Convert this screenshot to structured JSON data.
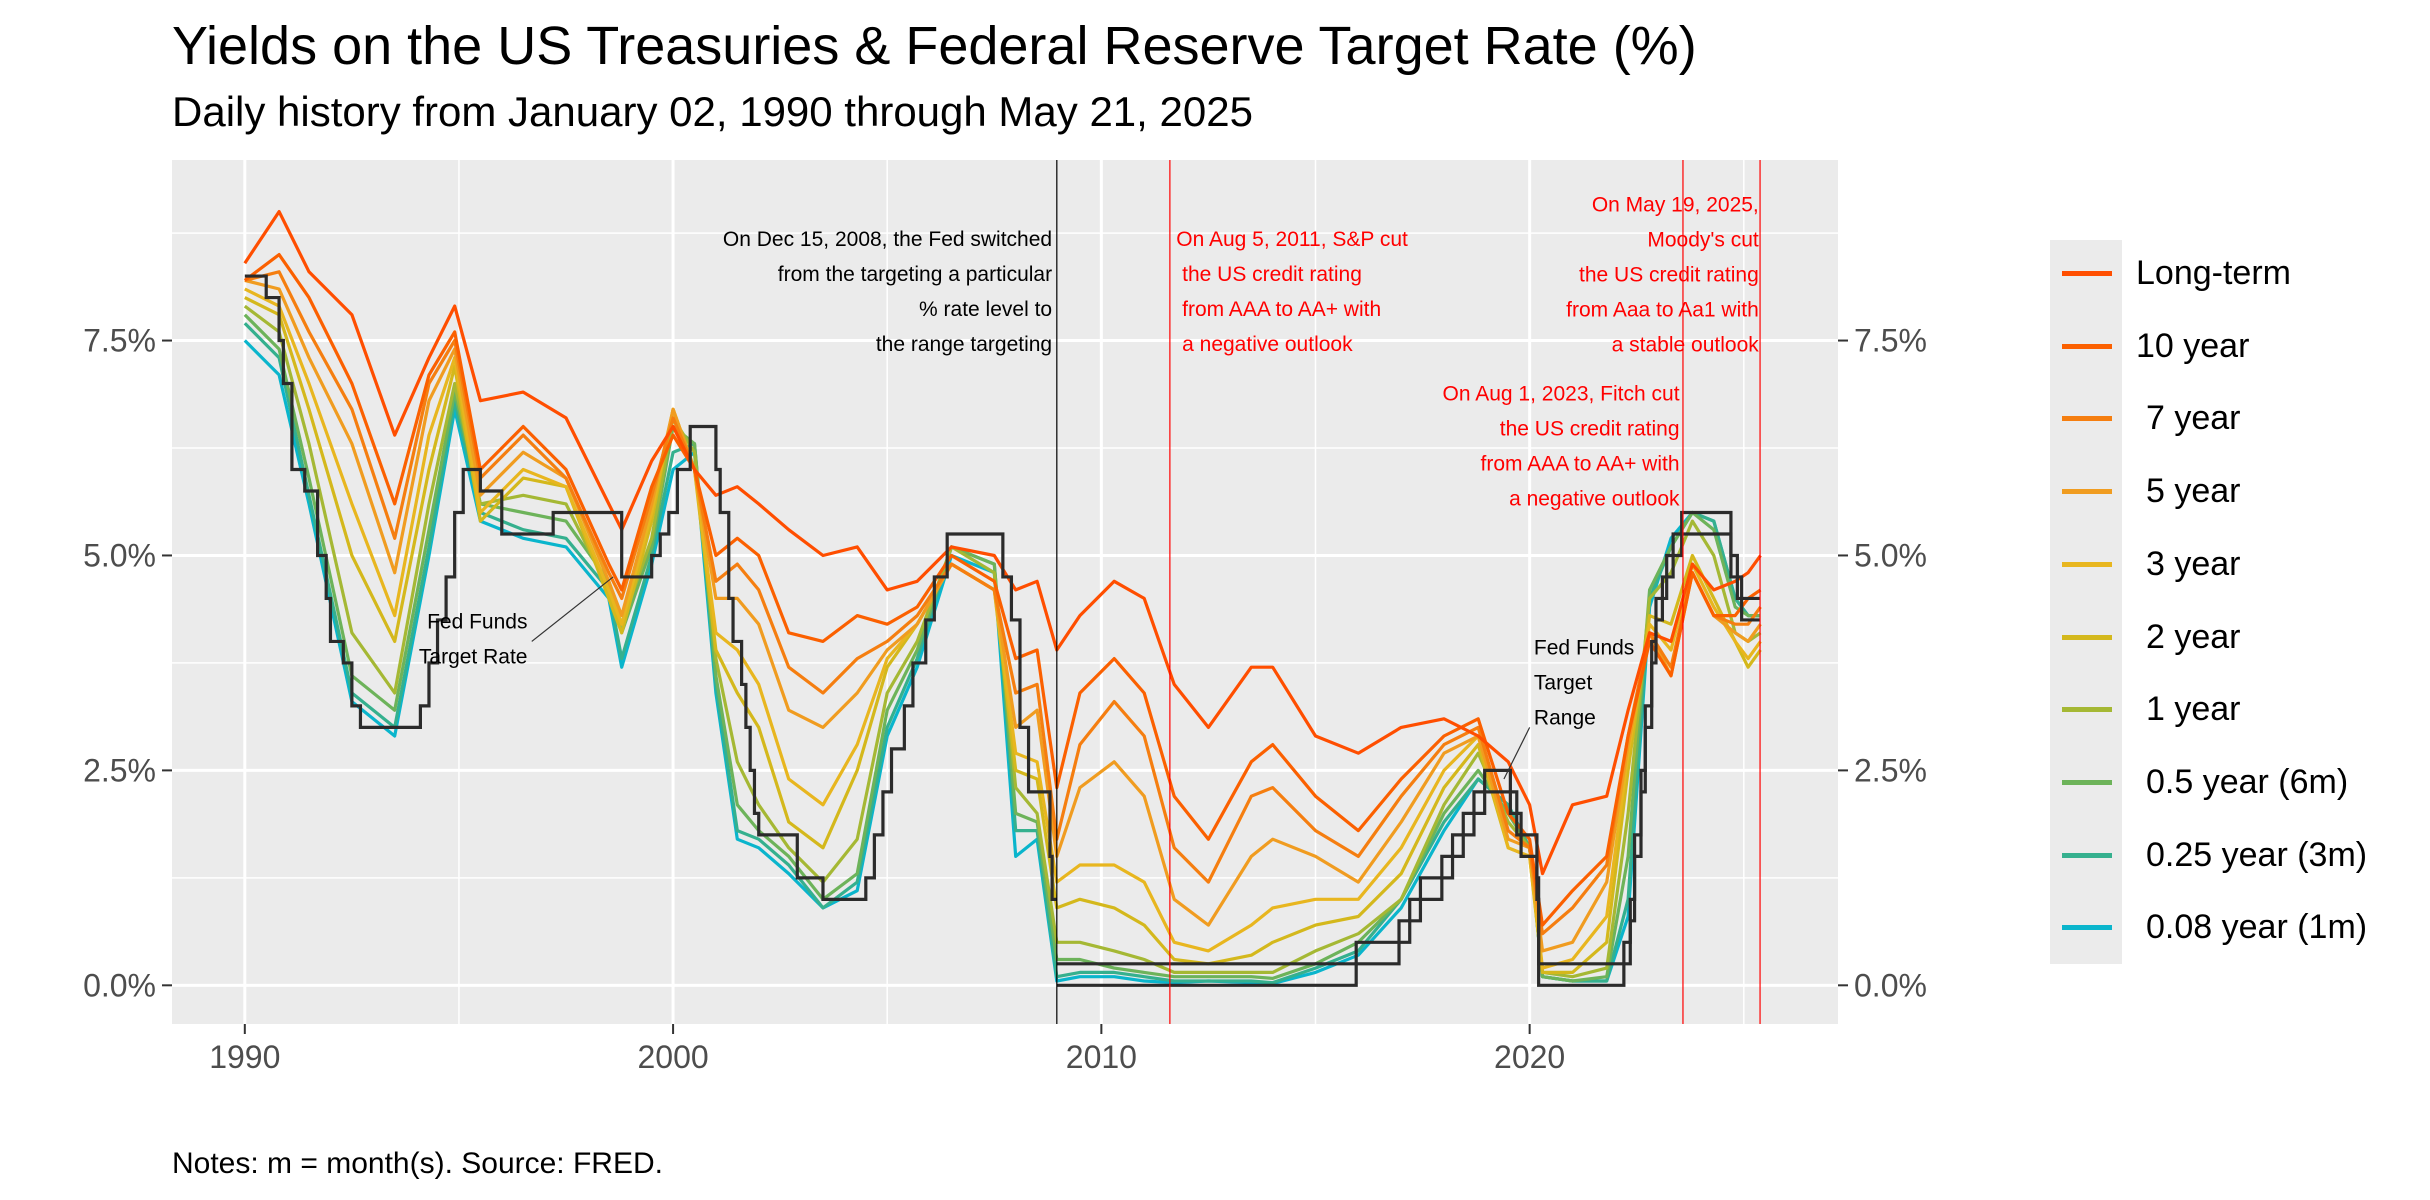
{
  "title": "Yields on the US Treasuries & Federal Reserve Target Rate (%)",
  "subtitle": "Daily history from January 02, 1990 through May 21, 2025",
  "note": "Notes: m = month(s). Source: FRED.",
  "colors": {
    "panel": "#ebebeb",
    "grid": "#ffffff",
    "fed": "#2b2b2b",
    "event_line": "#ff0000",
    "fed_switch_line": "#000000"
  },
  "chart_data": {
    "type": "line",
    "title": "Yields on the US Treasuries & Federal Reserve Target Rate (%)",
    "subtitle": "Daily history from January 02, 1990 through May 21, 2025",
    "xlabel": "",
    "ylabel": "",
    "xlim": [
      1988.3,
      2027.2
    ],
    "ylim": [
      -0.45,
      9.6
    ],
    "x_ticks": [
      1990,
      2000,
      2010,
      2020
    ],
    "x_tick_labels": [
      "1990",
      "2000",
      "2010",
      "2020"
    ],
    "y_ticks": [
      0,
      2.5,
      5,
      7.5
    ],
    "y_tick_labels": [
      "0.0%",
      "2.5%",
      "5.0%",
      "7.5%"
    ],
    "secondary_y_axis": true,
    "grid": true,
    "legend_position": "right",
    "x": [
      1990.0,
      1990.8,
      1991.5,
      1992.5,
      1993.5,
      1994.3,
      1994.9,
      1995.5,
      1996.5,
      1997.5,
      1998.5,
      1998.8,
      1999.5,
      2000.0,
      2000.5,
      2001.0,
      2001.5,
      2002.0,
      2002.7,
      2003.5,
      2004.3,
      2005.0,
      2005.7,
      2006.5,
      2007.5,
      2008.0,
      2008.5,
      2008.96,
      2009.5,
      2010.3,
      2011.0,
      2011.7,
      2012.5,
      2013.5,
      2014.0,
      2015.0,
      2016.0,
      2017.0,
      2018.0,
      2018.8,
      2019.5,
      2020.0,
      2020.3,
      2021.0,
      2021.8,
      2022.3,
      2022.8,
      2023.3,
      2023.8,
      2024.3,
      2024.8,
      2025.1,
      2025.39
    ],
    "series": [
      {
        "name": "Long-term",
        "color": "#ff4e00",
        "values": [
          8.4,
          9.0,
          8.3,
          7.8,
          6.4,
          7.3,
          7.9,
          6.8,
          6.9,
          6.6,
          5.6,
          5.3,
          6.1,
          6.5,
          6.0,
          5.7,
          5.8,
          5.6,
          5.3,
          5.0,
          5.1,
          4.6,
          4.7,
          5.1,
          5.0,
          4.6,
          4.7,
          3.9,
          4.3,
          4.7,
          4.5,
          3.5,
          3.0,
          3.7,
          3.7,
          2.9,
          2.7,
          3.0,
          3.1,
          2.9,
          2.6,
          2.1,
          1.3,
          2.1,
          2.2,
          3.2,
          4.1,
          4.0,
          4.9,
          4.6,
          4.7,
          4.8,
          5.0
        ]
      },
      {
        "name": "10 year",
        "color": "#fb6000",
        "values": [
          8.2,
          8.5,
          8.0,
          7.0,
          5.6,
          7.1,
          7.6,
          6.0,
          6.5,
          6.0,
          4.9,
          4.6,
          5.8,
          6.4,
          6.0,
          5.0,
          5.2,
          5.0,
          4.1,
          4.0,
          4.3,
          4.2,
          4.4,
          5.0,
          4.7,
          3.8,
          3.9,
          2.3,
          3.4,
          3.8,
          3.4,
          2.2,
          1.7,
          2.6,
          2.8,
          2.2,
          1.8,
          2.4,
          2.9,
          3.1,
          2.0,
          1.7,
          0.7,
          1.1,
          1.5,
          2.9,
          4.0,
          3.6,
          4.8,
          4.3,
          4.3,
          4.5,
          4.6
        ]
      },
      {
        "name": "7 year",
        "color": "#f57e10",
        "values": [
          8.2,
          8.3,
          7.6,
          6.7,
          5.2,
          7.0,
          7.5,
          5.9,
          6.4,
          5.9,
          4.8,
          4.5,
          5.7,
          6.6,
          6.0,
          4.7,
          4.9,
          4.6,
          3.7,
          3.4,
          3.8,
          4.0,
          4.3,
          4.9,
          4.6,
          3.4,
          3.5,
          1.7,
          2.8,
          3.3,
          2.9,
          1.6,
          1.2,
          2.2,
          2.3,
          1.8,
          1.5,
          2.2,
          2.8,
          3.0,
          1.8,
          1.6,
          0.6,
          0.9,
          1.4,
          2.9,
          4.1,
          3.7,
          4.8,
          4.3,
          4.2,
          4.2,
          4.4
        ]
      },
      {
        "name": "5 year",
        "color": "#f09c20",
        "values": [
          8.2,
          8.1,
          7.3,
          6.3,
          4.8,
          6.8,
          7.4,
          5.7,
          6.2,
          5.9,
          4.7,
          4.3,
          5.6,
          6.7,
          6.0,
          4.5,
          4.5,
          4.2,
          3.2,
          3.0,
          3.4,
          3.9,
          4.2,
          4.9,
          4.6,
          3.0,
          3.2,
          1.5,
          2.3,
          2.6,
          2.2,
          1.0,
          0.7,
          1.5,
          1.7,
          1.5,
          1.2,
          1.9,
          2.7,
          2.9,
          1.7,
          1.6,
          0.4,
          0.5,
          1.2,
          2.8,
          4.1,
          3.6,
          4.8,
          4.3,
          4.1,
          4.0,
          4.2
        ]
      },
      {
        "name": "3 year",
        "color": "#e8b61f",
        "values": [
          8.1,
          7.9,
          7.0,
          5.6,
          4.3,
          6.4,
          7.3,
          5.5,
          6.0,
          5.8,
          4.6,
          4.2,
          5.5,
          6.7,
          6.0,
          4.1,
          3.9,
          3.5,
          2.4,
          2.1,
          2.8,
          3.8,
          4.2,
          4.9,
          4.6,
          2.7,
          2.6,
          1.2,
          1.4,
          1.4,
          1.2,
          0.5,
          0.4,
          0.7,
          0.9,
          1.0,
          1.0,
          1.6,
          2.5,
          2.9,
          1.6,
          1.5,
          0.2,
          0.3,
          0.8,
          2.7,
          4.2,
          3.9,
          4.9,
          4.4,
          4.0,
          3.8,
          4.0
        ]
      },
      {
        "name": "2 year",
        "color": "#d4b81c",
        "values": [
          8.0,
          7.8,
          6.7,
          5.0,
          4.0,
          6.0,
          7.2,
          5.4,
          5.9,
          5.8,
          4.5,
          4.1,
          5.4,
          6.7,
          6.0,
          3.9,
          3.4,
          3.0,
          1.9,
          1.6,
          2.5,
          3.7,
          4.2,
          4.9,
          4.6,
          2.5,
          2.4,
          0.9,
          1.0,
          0.9,
          0.7,
          0.3,
          0.25,
          0.35,
          0.5,
          0.7,
          0.8,
          1.3,
          2.3,
          2.8,
          1.6,
          1.5,
          0.15,
          0.15,
          0.5,
          2.5,
          4.3,
          4.2,
          5.0,
          4.5,
          4.0,
          3.7,
          3.9
        ]
      },
      {
        "name": "1 year",
        "color": "#a5b834",
        "values": [
          7.9,
          7.6,
          6.3,
          4.1,
          3.4,
          5.6,
          7.0,
          5.6,
          5.7,
          5.6,
          4.6,
          4.2,
          5.2,
          6.6,
          6.2,
          3.8,
          2.6,
          2.1,
          1.6,
          1.2,
          1.7,
          3.4,
          4.0,
          5.1,
          4.8,
          2.3,
          2.0,
          0.5,
          0.5,
          0.4,
          0.3,
          0.15,
          0.15,
          0.15,
          0.15,
          0.4,
          0.6,
          1.0,
          2.1,
          2.7,
          1.9,
          1.6,
          0.15,
          0.1,
          0.2,
          2.0,
          4.5,
          4.8,
          5.4,
          5.0,
          4.1,
          4.0,
          4.1
        ]
      },
      {
        "name": "0.5 year (6m)",
        "color": "#6db35a",
        "values": [
          7.8,
          7.4,
          5.9,
          3.6,
          3.2,
          5.3,
          6.9,
          5.6,
          5.5,
          5.4,
          4.7,
          4.1,
          5.1,
          6.5,
          6.3,
          3.6,
          2.1,
          1.8,
          1.5,
          1.0,
          1.3,
          3.2,
          3.9,
          5.1,
          4.9,
          2.0,
          1.9,
          0.3,
          0.3,
          0.2,
          0.15,
          0.1,
          0.1,
          0.1,
          0.08,
          0.25,
          0.5,
          1.0,
          2.0,
          2.5,
          2.0,
          1.6,
          0.1,
          0.05,
          0.1,
          1.5,
          4.6,
          5.1,
          5.5,
          5.3,
          4.4,
          4.3,
          4.3
        ]
      },
      {
        "name": "0.25 year (3m)",
        "color": "#35b08e",
        "values": [
          7.7,
          7.3,
          5.7,
          3.4,
          3.0,
          5.1,
          6.8,
          5.5,
          5.3,
          5.2,
          4.6,
          3.8,
          5.0,
          6.2,
          6.3,
          3.5,
          1.8,
          1.7,
          1.4,
          0.9,
          1.2,
          3.0,
          3.8,
          5.1,
          4.9,
          1.8,
          1.8,
          0.1,
          0.15,
          0.15,
          0.1,
          0.05,
          0.05,
          0.05,
          0.03,
          0.2,
          0.4,
          1.0,
          1.9,
          2.4,
          2.1,
          1.6,
          0.1,
          0.05,
          0.05,
          1.0,
          4.5,
          5.1,
          5.5,
          5.4,
          4.5,
          4.3,
          4.3
        ]
      },
      {
        "name": "0.08 year (1m)",
        "color": "#0ab5cc",
        "values": [
          7.5,
          7.1,
          5.6,
          3.3,
          2.9,
          5.0,
          6.7,
          5.4,
          5.2,
          5.1,
          4.5,
          3.7,
          4.9,
          6.0,
          6.2,
          3.4,
          1.7,
          1.6,
          1.3,
          0.9,
          1.1,
          2.9,
          3.7,
          5.0,
          4.8,
          1.5,
          1.7,
          0.05,
          0.1,
          0.1,
          0.05,
          0.03,
          0.05,
          0.03,
          0.02,
          0.15,
          0.35,
          0.9,
          1.8,
          2.4,
          2.1,
          1.6,
          0.1,
          0.05,
          0.05,
          0.8,
          4.4,
          5.2,
          5.5,
          5.4,
          4.5,
          4.3,
          4.3
        ]
      }
    ],
    "fed_funds_target": {
      "name": "Fed Funds Target",
      "steps": [
        [
          1990.0,
          8.25
        ],
        [
          1990.5,
          8.0
        ],
        [
          1990.8,
          7.5
        ],
        [
          1990.9,
          7.0
        ],
        [
          1991.1,
          6.0
        ],
        [
          1991.4,
          5.75
        ],
        [
          1991.7,
          5.0
        ],
        [
          1991.9,
          4.5
        ],
        [
          1992.0,
          4.0
        ],
        [
          1992.3,
          3.75
        ],
        [
          1992.5,
          3.25
        ],
        [
          1992.7,
          3.0
        ],
        [
          1994.1,
          3.25
        ],
        [
          1994.3,
          3.75
        ],
        [
          1994.5,
          4.25
        ],
        [
          1994.7,
          4.75
        ],
        [
          1994.9,
          5.5
        ],
        [
          1995.1,
          6.0
        ],
        [
          1995.5,
          5.75
        ],
        [
          1996.0,
          5.25
        ],
        [
          1997.2,
          5.5
        ],
        [
          1998.8,
          4.75
        ],
        [
          1999.5,
          5.0
        ],
        [
          1999.7,
          5.25
        ],
        [
          1999.9,
          5.5
        ],
        [
          2000.1,
          6.0
        ],
        [
          2000.4,
          6.5
        ],
        [
          2001.0,
          6.0
        ],
        [
          2001.1,
          5.5
        ],
        [
          2001.3,
          4.5
        ],
        [
          2001.4,
          4.0
        ],
        [
          2001.6,
          3.5
        ],
        [
          2001.7,
          3.0
        ],
        [
          2001.8,
          2.5
        ],
        [
          2001.9,
          2.0
        ],
        [
          2002.0,
          1.75
        ],
        [
          2002.9,
          1.25
        ],
        [
          2003.5,
          1.0
        ],
        [
          2004.5,
          1.25
        ],
        [
          2004.7,
          1.75
        ],
        [
          2004.9,
          2.25
        ],
        [
          2005.1,
          2.75
        ],
        [
          2005.4,
          3.25
        ],
        [
          2005.6,
          3.75
        ],
        [
          2005.9,
          4.25
        ],
        [
          2006.1,
          4.75
        ],
        [
          2006.4,
          5.25
        ],
        [
          2007.7,
          4.75
        ],
        [
          2007.9,
          4.25
        ],
        [
          2008.1,
          3.0
        ],
        [
          2008.3,
          2.25
        ],
        [
          2008.8,
          1.5
        ],
        [
          2008.85,
          1.0
        ]
      ],
      "upper_steps": [
        [
          2008.96,
          0.25
        ],
        [
          2015.95,
          0.5
        ],
        [
          2016.95,
          0.75
        ],
        [
          2017.2,
          1.0
        ],
        [
          2017.45,
          1.25
        ],
        [
          2017.95,
          1.5
        ],
        [
          2018.2,
          1.75
        ],
        [
          2018.45,
          2.0
        ],
        [
          2018.7,
          2.25
        ],
        [
          2018.95,
          2.5
        ],
        [
          2019.55,
          2.25
        ],
        [
          2019.7,
          2.0
        ],
        [
          2019.8,
          1.75
        ],
        [
          2020.17,
          1.25
        ],
        [
          2020.21,
          0.25
        ],
        [
          2022.2,
          0.5
        ],
        [
          2022.35,
          1.0
        ],
        [
          2022.45,
          1.75
        ],
        [
          2022.6,
          2.5
        ],
        [
          2022.7,
          3.25
        ],
        [
          2022.85,
          4.0
        ],
        [
          2022.95,
          4.5
        ],
        [
          2023.1,
          4.75
        ],
        [
          2023.2,
          5.0
        ],
        [
          2023.35,
          5.25
        ],
        [
          2023.55,
          5.5
        ],
        [
          2024.7,
          5.0
        ],
        [
          2024.85,
          4.75
        ],
        [
          2024.95,
          4.5
        ],
        [
          2025.39,
          4.5
        ]
      ],
      "lower_steps": [
        [
          2008.96,
          0.0
        ],
        [
          2015.95,
          0.25
        ],
        [
          2016.95,
          0.5
        ],
        [
          2017.2,
          0.75
        ],
        [
          2017.45,
          1.0
        ],
        [
          2017.95,
          1.25
        ],
        [
          2018.2,
          1.5
        ],
        [
          2018.45,
          1.75
        ],
        [
          2018.7,
          2.0
        ],
        [
          2018.95,
          2.25
        ],
        [
          2019.55,
          2.0
        ],
        [
          2019.7,
          1.75
        ],
        [
          2019.8,
          1.5
        ],
        [
          2020.17,
          1.0
        ],
        [
          2020.21,
          0.0
        ],
        [
          2022.2,
          0.25
        ],
        [
          2022.35,
          0.75
        ],
        [
          2022.45,
          1.5
        ],
        [
          2022.6,
          2.25
        ],
        [
          2022.7,
          3.0
        ],
        [
          2022.85,
          3.75
        ],
        [
          2022.95,
          4.25
        ],
        [
          2023.1,
          4.5
        ],
        [
          2023.2,
          4.75
        ],
        [
          2023.35,
          5.0
        ],
        [
          2023.55,
          5.25
        ],
        [
          2024.7,
          4.75
        ],
        [
          2024.85,
          4.5
        ],
        [
          2024.95,
          4.25
        ],
        [
          2025.39,
          4.25
        ]
      ]
    },
    "event_lines": [
      {
        "name": "Fed switch",
        "x": 2008.96,
        "color": "#000000"
      },
      {
        "name": "S&P downgrade",
        "x": 2011.6,
        "color": "#ff0000"
      },
      {
        "name": "Fitch downgrade",
        "x": 2023.58,
        "color": "#ff0000"
      },
      {
        "name": "Moody's downgrade",
        "x": 2025.38,
        "color": "#ff0000"
      }
    ],
    "annotations": [
      {
        "lines": [
          "On Dec 15, 2008, the Fed switched",
          "from the targeting a particular",
          "% rate level to",
          "the range targeting"
        ],
        "x": 2008.85,
        "y": 8.6,
        "anchor": "end",
        "color": "#000000"
      },
      {
        "lines": [
          "On Aug 5, 2011, S&P cut",
          " the US credit rating",
          " from AAA to AA+ with",
          " a negative outlook"
        ],
        "x": 2011.75,
        "y": 8.6,
        "anchor": "start",
        "color": "#ff0000"
      },
      {
        "lines": [
          "On May 19, 2025,",
          "Moody's cut",
          "the US credit rating",
          "from Aaa to Aa1 with",
          "a stable outlook"
        ],
        "x": 2025.35,
        "y": 9.0,
        "anchor": "end",
        "color": "#ff0000"
      },
      {
        "lines": [
          "On Aug 1, 2023, Fitch cut",
          "the US credit rating",
          "from AAA to AA+ with",
          "a negative outlook"
        ],
        "x": 2023.5,
        "y": 6.8,
        "anchor": "end",
        "color": "#ff0000"
      },
      {
        "lines": [
          "Fed Funds",
          "Target Rate"
        ],
        "x": 1996.6,
        "y": 4.15,
        "anchor": "end",
        "color": "#000000"
      },
      {
        "lines": [
          "Fed Funds",
          "Target",
          "Range"
        ],
        "x": 2020.1,
        "y": 3.85,
        "anchor": "start",
        "color": "#000000"
      }
    ],
    "annotation_pointers": [
      {
        "from": [
          1996.7,
          4.0
        ],
        "to": [
          1998.6,
          4.75
        ]
      },
      {
        "from": [
          2020.0,
          3.0
        ],
        "to": [
          2019.4,
          2.4
        ]
      }
    ]
  }
}
